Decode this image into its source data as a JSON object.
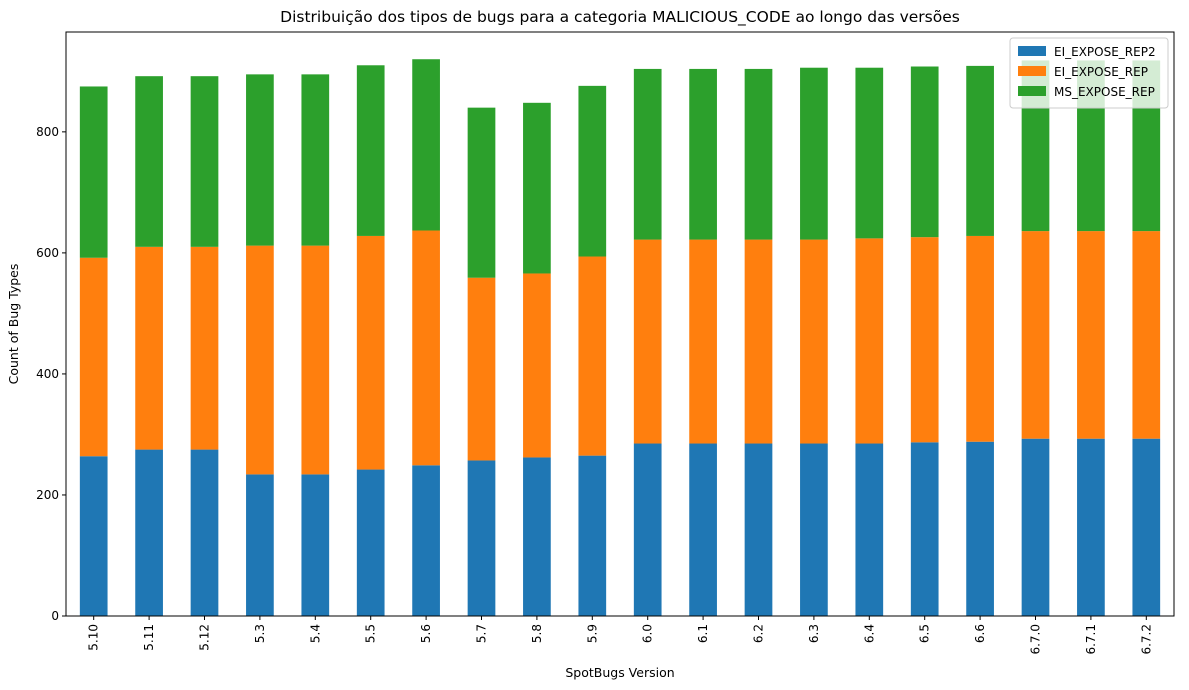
{
  "chart_data": {
    "type": "bar",
    "stacked": true,
    "title": "Distribuição dos tipos de bugs para a categoria MALICIOUS_CODE ao longo das versões",
    "xlabel": "SpotBugs Version",
    "ylabel": "Count of Bug Types",
    "ylim": [
      0,
      965
    ],
    "yticks": [
      0,
      200,
      400,
      600,
      800
    ],
    "grid": false,
    "legend_position": "top-right",
    "categories": [
      "5.10",
      "5.11",
      "5.12",
      "5.3",
      "5.4",
      "5.5",
      "5.6",
      "5.7",
      "5.8",
      "5.9",
      "6.0",
      "6.1",
      "6.2",
      "6.3",
      "6.4",
      "6.5",
      "6.6",
      "6.7.0",
      "6.7.1",
      "6.7.2"
    ],
    "series": [
      {
        "name": "EI_EXPOSE_REP2",
        "color": "#1f77b4",
        "values": [
          264,
          275,
          275,
          234,
          234,
          242,
          249,
          257,
          262,
          265,
          285,
          285,
          285,
          285,
          285,
          287,
          288,
          293,
          293,
          293
        ]
      },
      {
        "name": "EI_EXPOSE_REP",
        "color": "#ff7f0e",
        "values": [
          328,
          335,
          335,
          378,
          378,
          386,
          388,
          302,
          304,
          329,
          337,
          337,
          337,
          337,
          339,
          339,
          340,
          343,
          343,
          343
        ]
      },
      {
        "name": "MS_EXPOSE_REP",
        "color": "#2ca02c",
        "values": [
          283,
          282,
          282,
          283,
          283,
          282,
          283,
          281,
          282,
          282,
          282,
          282,
          282,
          284,
          282,
          282,
          281,
          282,
          282,
          282
        ]
      }
    ]
  }
}
